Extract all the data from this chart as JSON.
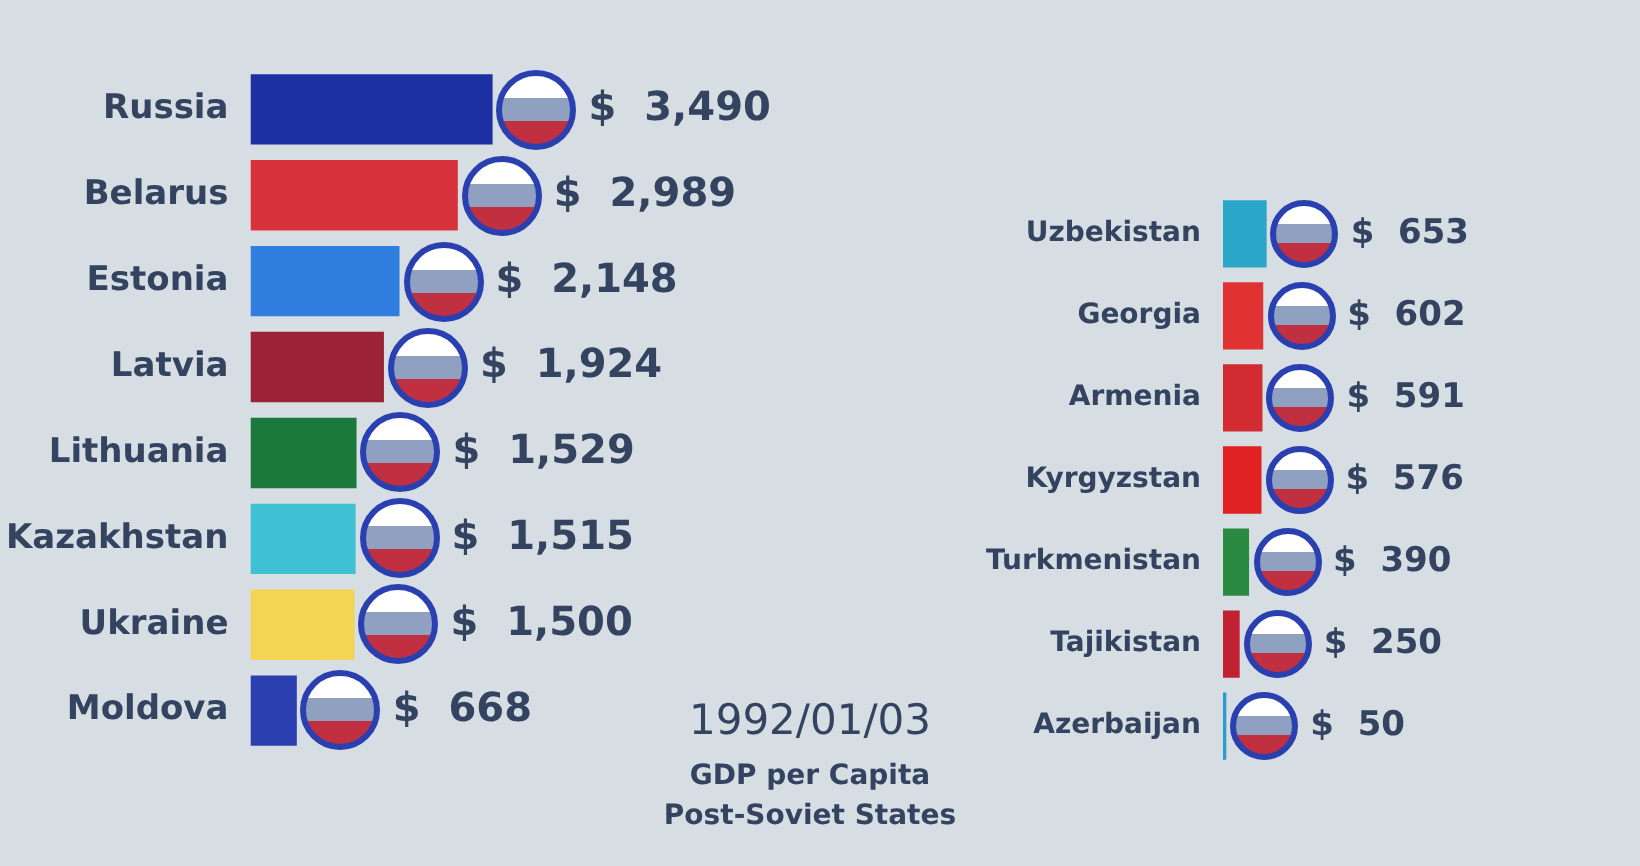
{
  "chart_data": [
    {
      "type": "other",
      "title": "GDP per Capita\nPost-Soviet States",
      "subtitle": "1992/01/03"
    },
    {
      "type": "bar",
      "orientation": "horizontal",
      "categories": [
        "Russia",
        "Belarus",
        "Estonia",
        "Latvia",
        "Lithuania",
        "Kazakhstan",
        "Ukraine",
        "Moldova"
      ],
      "values": [
        3490,
        2989,
        2148,
        1924,
        1529,
        1515,
        1500,
        668
      ],
      "colors": [
        "#1c2fa3",
        "#d8323d",
        "#2f7ee0",
        "#9c2336",
        "#1b7a3b",
        "#3fc1d4",
        "#f3d553",
        "#2b40b0"
      ],
      "value_labels": [
        "$  3,490",
        "$  2,989",
        "$  2,148",
        "$  1,924",
        "$  1,529",
        "$  1,515",
        "$  1,500",
        "$  668"
      ]
    },
    {
      "type": "bar",
      "orientation": "horizontal",
      "categories": [
        "Uzbekistan",
        "Georgia",
        "Armenia",
        "Kyrgyzstan",
        "Turkmenistan",
        "Tajikistan",
        "Azerbaijan"
      ],
      "values": [
        653,
        602,
        591,
        576,
        390,
        250,
        50
      ],
      "colors": [
        "#2aa6c9",
        "#e03232",
        "#d22b31",
        "#e02222",
        "#2a8a41",
        "#c12131",
        "#2a9ad1"
      ],
      "value_labels": [
        "$  653",
        "$  602",
        "$  591",
        "$  576",
        "$  390",
        "$  250",
        "$  50"
      ]
    }
  ]
}
